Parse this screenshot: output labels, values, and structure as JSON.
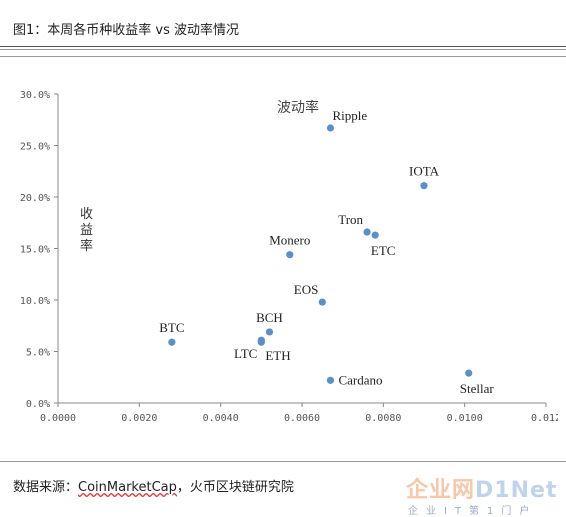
{
  "header": {
    "title": "图1：本周各币种收益率 vs 波动率情况"
  },
  "footer": {
    "source_prefix": "数据来源：",
    "source_link": "CoinMarketCap",
    "source_suffix": "，火币区块链研究院",
    "logo_text_a": "企业网",
    "logo_text_b": "D1Net",
    "logo_sub": "企业IT第1门户"
  },
  "chart_data": {
    "type": "scatter",
    "title": "波动率",
    "xlabel": "",
    "ylabel": "收益率",
    "xlim": [
      0,
      0.012
    ],
    "ylim": [
      0,
      0.3
    ],
    "grid": false,
    "colors": {
      "point": "#5b8fc9"
    },
    "x_ticks": [
      "0.0000",
      "0.0020",
      "0.0040",
      "0.0060",
      "0.0080",
      "0.0100",
      "0.012"
    ],
    "y_ticks": [
      "0.0%",
      "5.0%",
      "10.0%",
      "15.0%",
      "20.0%",
      "25.0%",
      "30.0%"
    ],
    "points": [
      {
        "label": "Ripple",
        "x": 0.0067,
        "y": 0.267,
        "pos": "above-right"
      },
      {
        "label": "IOTA",
        "x": 0.009,
        "y": 0.211,
        "pos": "above"
      },
      {
        "label": "Tron",
        "x": 0.0076,
        "y": 0.166,
        "pos": "above-left"
      },
      {
        "label": "ETC",
        "x": 0.0078,
        "y": 0.163,
        "pos": "below"
      },
      {
        "label": "Monero",
        "x": 0.0057,
        "y": 0.144,
        "pos": "above"
      },
      {
        "label": "EOS",
        "x": 0.0065,
        "y": 0.098,
        "pos": "above-left"
      },
      {
        "label": "BCH",
        "x": 0.0052,
        "y": 0.069,
        "pos": "above"
      },
      {
        "label": "BTC",
        "x": 0.0028,
        "y": 0.059,
        "pos": "above"
      },
      {
        "label": "LTC",
        "x": 0.005,
        "y": 0.061,
        "pos": "below-left"
      },
      {
        "label": "ETH",
        "x": 0.005,
        "y": 0.059,
        "pos": "below-right"
      },
      {
        "label": "Cardano",
        "x": 0.0067,
        "y": 0.022,
        "pos": "right"
      },
      {
        "label": "Stellar",
        "x": 0.0101,
        "y": 0.029,
        "pos": "below"
      }
    ]
  }
}
